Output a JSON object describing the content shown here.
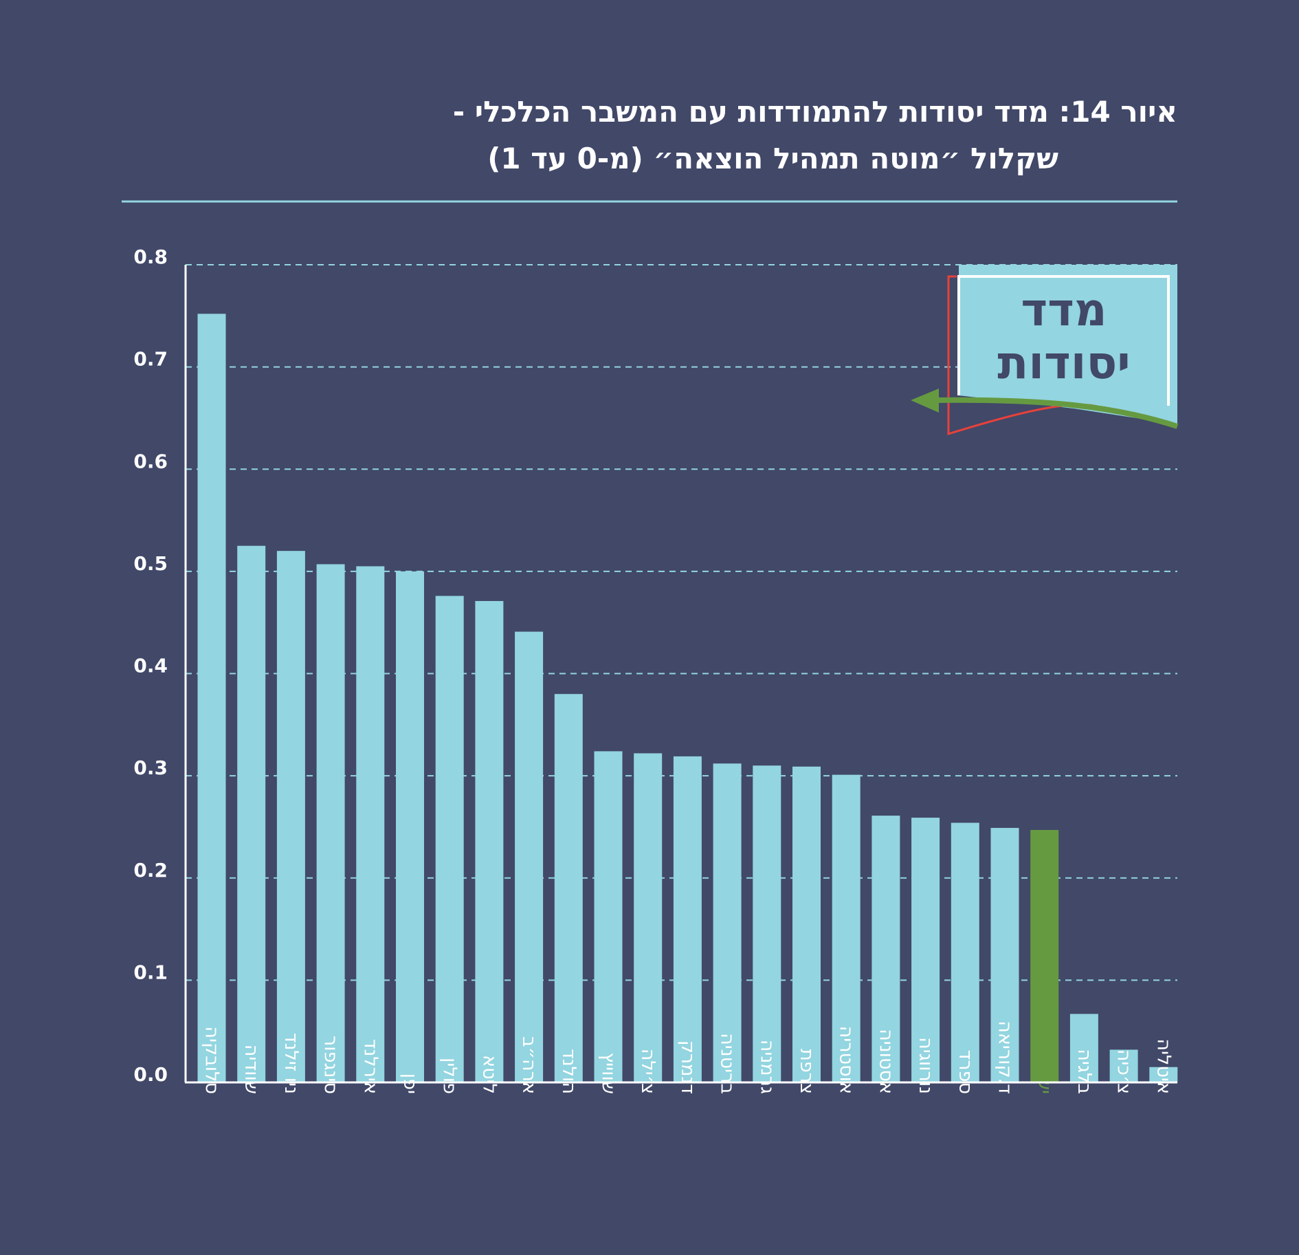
{
  "title_line1": "איור 14: מדד יסודות להתמודדות עם המשבר הכלכלי -",
  "title_line2": "שקלול ״מוטה תמהיל הוצאה״ (מ-0 עד 1)",
  "badge": {
    "line1": "מדד",
    "line2": "יסודות"
  },
  "colors": {
    "background": "#414868",
    "bar": "#93D5E0",
    "highlight": "#669A41",
    "grid": "#93D5E0",
    "axis": "#ffffff",
    "arrow_green": "#669A41",
    "arrow_red": "#E8413B"
  },
  "chart_data": {
    "type": "bar",
    "categories": [
      "סלובקיה",
      "שוודיה",
      "ניו זילנד",
      "סינגפור",
      "אירלנד",
      "יפן",
      "פולין",
      "ליטא",
      "ארה״ב",
      "הולנד",
      "שווייץ",
      "צ׳ילה",
      "דנמרק",
      "בריטניה",
      "גרמניה",
      "צרפת",
      "אוסטריה",
      "אסטוניה",
      "נורווגיה",
      "ספרד",
      "ד.קוריאה",
      "ישראל",
      "בלגיה",
      "צ׳כיה",
      "איטליה"
    ],
    "values": [
      0.752,
      0.525,
      0.52,
      0.507,
      0.505,
      0.5,
      0.476,
      0.471,
      0.441,
      0.38,
      0.324,
      0.322,
      0.319,
      0.312,
      0.31,
      0.309,
      0.301,
      0.261,
      0.259,
      0.254,
      0.249,
      0.247,
      0.067,
      0.032,
      0.015
    ],
    "highlight_category": "ישראל",
    "yticks": [
      "0.0",
      "0.1",
      "0.2",
      "0.3",
      "0.4",
      "0.5",
      "0.6",
      "0.7",
      "0.8"
    ],
    "ylim": [
      0,
      0.8
    ],
    "grid": true,
    "title": "איור 14: מדד יסודות להתמודדות עם המשבר הכלכלי - שקלול ״מוטה תמהיל הוצאה״ (מ-0 עד 1)",
    "xlabel": "",
    "ylabel": ""
  }
}
